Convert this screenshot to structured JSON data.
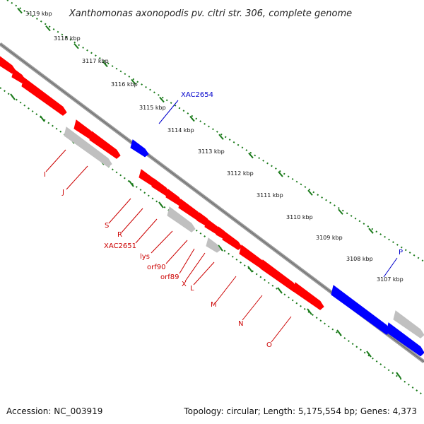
{
  "header": {
    "title": "Xanthomonas axonopodis pv. citri str. 306, complete genome"
  },
  "footer": {
    "accession": "Accession: NC_003919",
    "topology": "Topology: circular; Length: 5,175,554 bp; Genes: 4,373"
  },
  "colors": {
    "forward_gene": "#ff0000",
    "reverse_gene": "#0000ff",
    "other_feature": "#c0c0c0",
    "backbone": "#808080",
    "tick": "#1a7a1a",
    "label_red": "#cc0000",
    "label_blue": "#0000cc"
  },
  "scale": {
    "ticks": [
      {
        "label": "3119 kbp"
      },
      {
        "label": "3118 kbp"
      },
      {
        "label": "3117 kbp"
      },
      {
        "label": "3116 kbp"
      },
      {
        "label": "3115 kbp"
      },
      {
        "label": "3114 kbp"
      },
      {
        "label": "3113 kbp"
      },
      {
        "label": "3112 kbp"
      },
      {
        "label": "3111 kbp"
      },
      {
        "label": "3110 kbp"
      },
      {
        "label": "3109 kbp"
      },
      {
        "label": "3108 kbp"
      },
      {
        "label": "3107 kbp"
      }
    ]
  },
  "gene_labels": [
    {
      "text": "XAC2654",
      "color": "blue"
    },
    {
      "text": "P",
      "color": "blue"
    },
    {
      "text": "I",
      "color": "red"
    },
    {
      "text": "J",
      "color": "red"
    },
    {
      "text": "S",
      "color": "red"
    },
    {
      "text": "R",
      "color": "red"
    },
    {
      "text": "XAC2651",
      "color": "red"
    },
    {
      "text": "lys",
      "color": "red"
    },
    {
      "text": "orf90",
      "color": "red"
    },
    {
      "text": "orf89",
      "color": "red"
    },
    {
      "text": "X",
      "color": "red"
    },
    {
      "text": "L",
      "color": "red"
    },
    {
      "text": "M",
      "color": "red"
    },
    {
      "text": "N",
      "color": "red"
    },
    {
      "text": "O",
      "color": "red"
    }
  ]
}
